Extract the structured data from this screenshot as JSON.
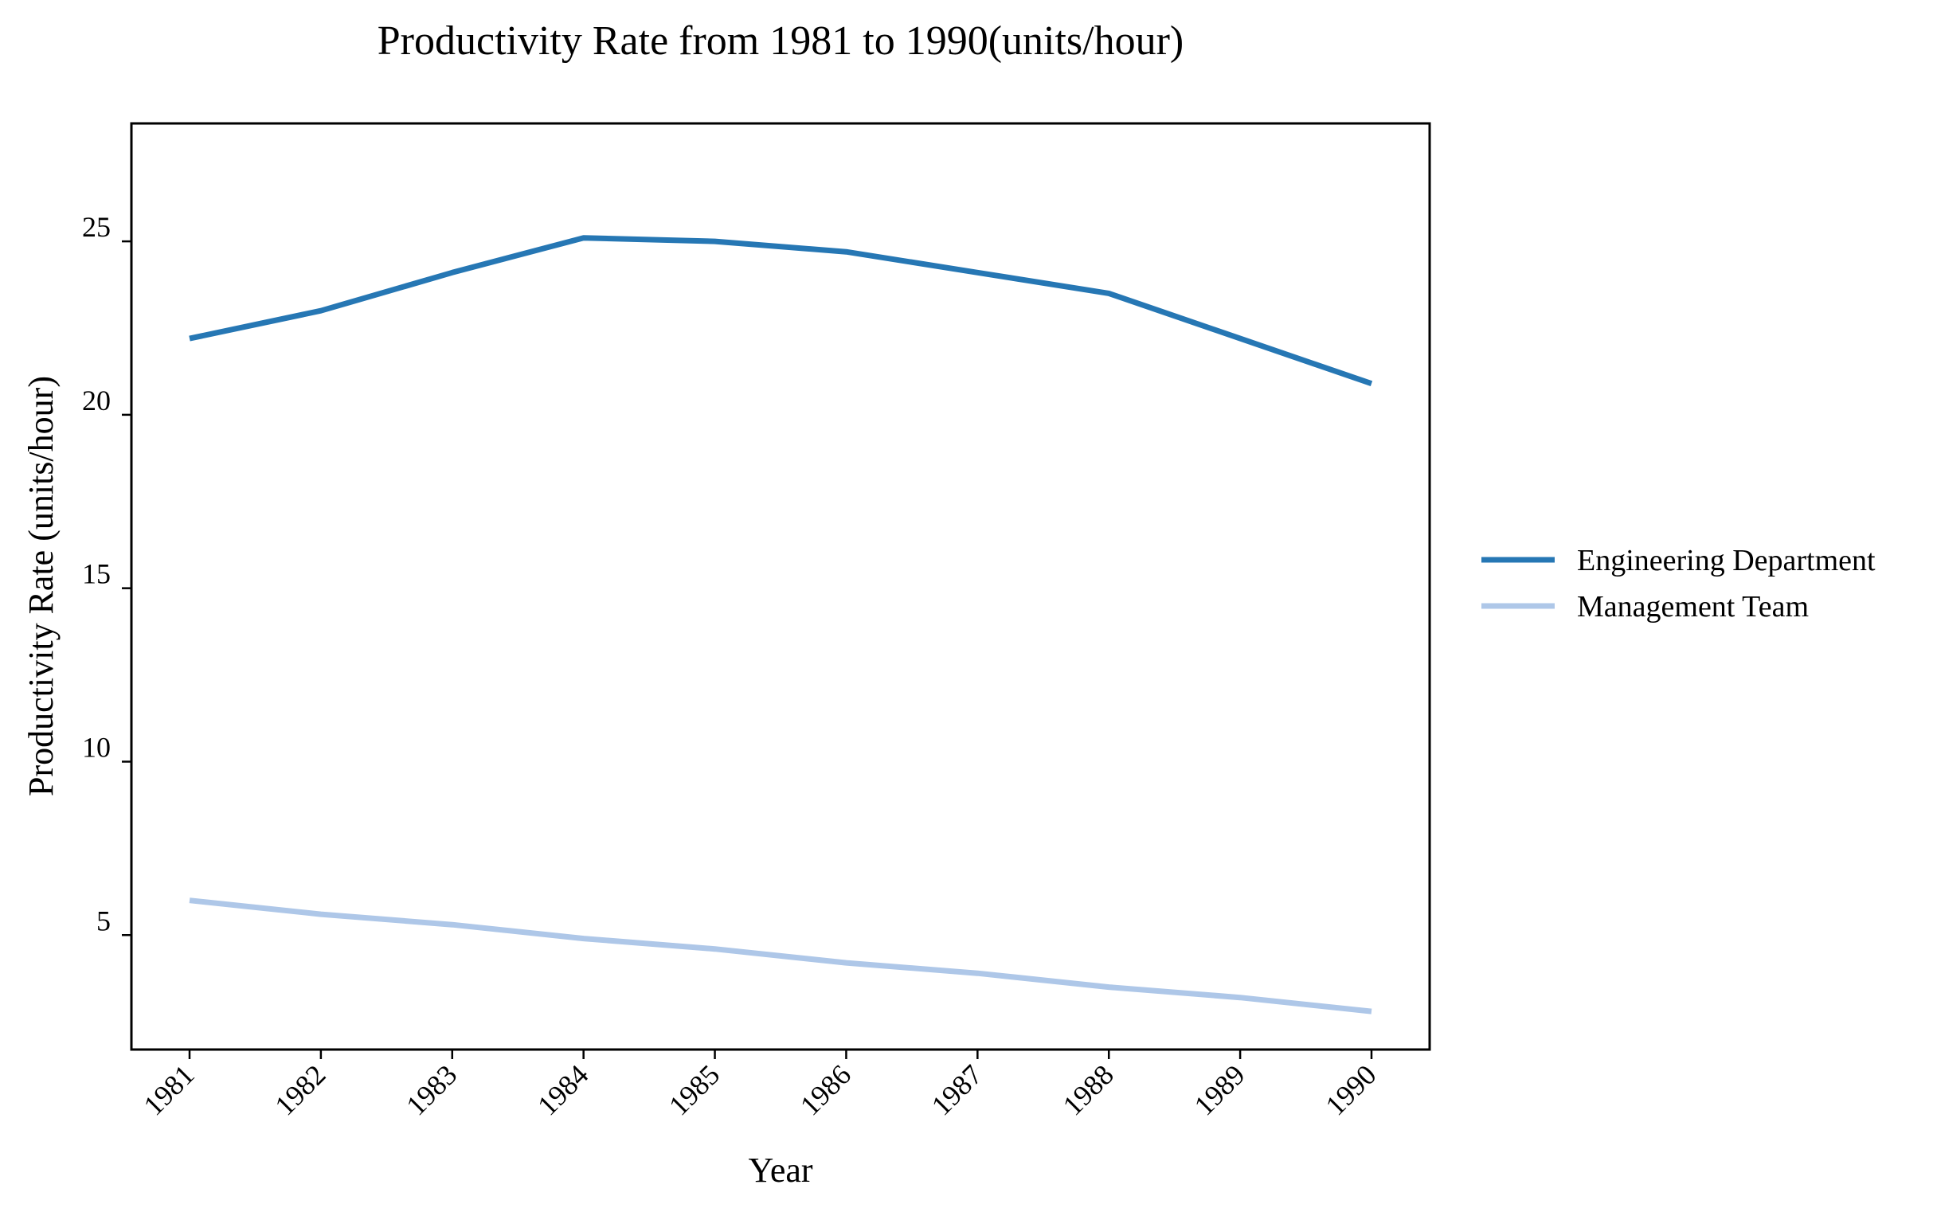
{
  "chart_data": {
    "type": "line",
    "title": "Productivity Rate from 1981 to 1990(units/hour)",
    "xlabel": "Year",
    "ylabel": "Productivity Rate (units/hour)",
    "categories": [
      "1981",
      "1982",
      "1983",
      "1984",
      "1985",
      "1986",
      "1987",
      "1988",
      "1989",
      "1990"
    ],
    "yticks": [
      5,
      10,
      15,
      20,
      25
    ],
    "ylim": [
      1.7,
      28.4
    ],
    "grid": false,
    "legend_position": "right",
    "series": [
      {
        "name": "Engineering Department",
        "color": "#2677b4",
        "values": [
          22.2,
          23.0,
          24.1,
          25.1,
          25.0,
          24.7,
          24.1,
          23.5,
          22.2,
          20.9
        ]
      },
      {
        "name": "Management Team",
        "color": "#aec7e8",
        "values": [
          6.0,
          5.6,
          5.3,
          4.9,
          4.6,
          4.2,
          3.9,
          3.5,
          3.2,
          2.8
        ]
      }
    ]
  }
}
